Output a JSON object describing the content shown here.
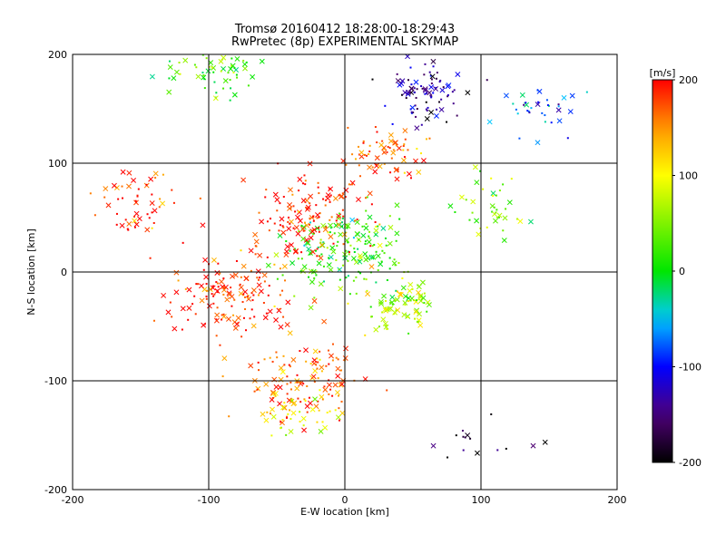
{
  "chart_data": {
    "type": "scatter",
    "title": "Tromsø 20160412 18:28:00-18:29:43",
    "subtitle": "RwPretec (8p) EXPERIMENTAL SKYMAP",
    "xlabel": "E-W location [km]",
    "ylabel": "N-S location [km]",
    "xlim": [
      -200,
      200
    ],
    "ylim": [
      -200,
      200
    ],
    "xticks": [
      "-200",
      "-100",
      "0",
      "100",
      "200"
    ],
    "yticks": [
      "-200",
      "-100",
      "0",
      "100",
      "200"
    ],
    "grid": true,
    "marker_types": [
      "dot",
      "cross"
    ],
    "colorbar": {
      "label": "[m/s]",
      "range": [
        -200,
        200
      ],
      "ticks": [
        "200",
        "100",
        "0",
        "-100",
        "-200"
      ],
      "colormap": "rainbow (black-purple-blue-cyan-green-yellow-orange-red)"
    },
    "clusters": [
      {
        "x": 0,
        "y": 20,
        "v": 20,
        "n": 180
      },
      {
        "x": -25,
        "y": 50,
        "v": 190,
        "n": 140
      },
      {
        "x": 30,
        "y": 110,
        "v": 170,
        "n": 70
      },
      {
        "x": 60,
        "y": 165,
        "v": -140,
        "n": 90
      },
      {
        "x": -95,
        "y": 190,
        "v": 30,
        "n": 70
      },
      {
        "x": -85,
        "y": -20,
        "v": 185,
        "n": 150
      },
      {
        "x": -30,
        "y": -100,
        "v": 170,
        "n": 120
      },
      {
        "x": -35,
        "y": -128,
        "v": 100,
        "n": 40
      },
      {
        "x": 40,
        "y": -30,
        "v": 70,
        "n": 80
      },
      {
        "x": 105,
        "y": -155,
        "v": -200,
        "n": 15
      },
      {
        "x": 140,
        "y": 150,
        "v": -80,
        "n": 35
      },
      {
        "x": -150,
        "y": 60,
        "v": 190,
        "n": 55
      },
      {
        "x": 110,
        "y": 60,
        "v": 40,
        "n": 40
      }
    ]
  }
}
